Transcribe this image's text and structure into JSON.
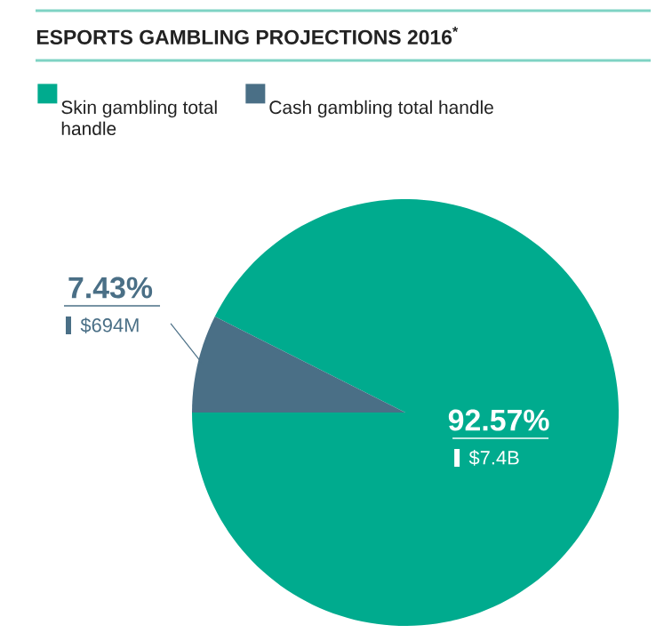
{
  "chart_data": {
    "type": "pie",
    "title": "ESPORTS GAMBLING PROJECTIONS 2016$^{*}$",
    "categories": [
      "Skin gambling total handle",
      "Cash gambling total handle"
    ],
    "values": [
      92.57,
      7.43
    ],
    "colors": [
      "#00ab8e",
      "#4a6f86"
    ],
    "value_labels": [
      "92.57%",
      "7.43%"
    ],
    "annotations": [
      "$7.4B",
      "$694M"
    ],
    "legend": "top left"
  }
}
